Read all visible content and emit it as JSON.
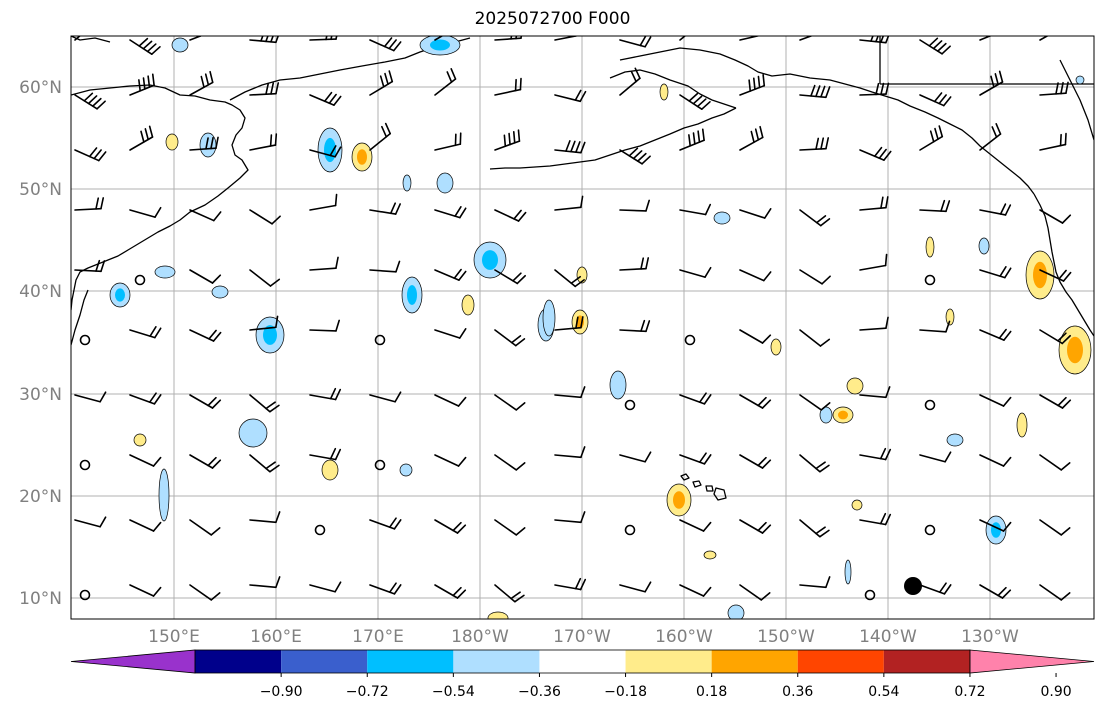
{
  "title": "2025072700 F000",
  "map": {
    "lat_labels": [
      "60°N",
      "50°N",
      "40°N",
      "30°N",
      "20°N",
      "10°N"
    ],
    "lon_labels": [
      "150°E",
      "160°E",
      "170°E",
      "180°W",
      "170°W",
      "160°W",
      "150°W",
      "140°W",
      "130°W"
    ],
    "label_color": "#808080",
    "grid_color": "#b0b0b0",
    "pos_contour_colors": [
      "#ffec8b",
      "#ffa500"
    ],
    "neg_contour_colors": [
      "#afdfff",
      "#00bfff"
    ]
  },
  "colorbar": {
    "tick_labels": [
      "−0.90",
      "−0.72",
      "−0.54",
      "−0.36",
      "−0.18",
      "0.18",
      "0.36",
      "0.54",
      "0.72",
      "0.90"
    ],
    "colors": [
      "#9932cc",
      "#00008b",
      "#3a5fcd",
      "#00bfff",
      "#afdfff",
      "#ffffff",
      "#ffec8b",
      "#ffa500",
      "#ff4500",
      "#b22222",
      "#ff82ab"
    ]
  }
}
